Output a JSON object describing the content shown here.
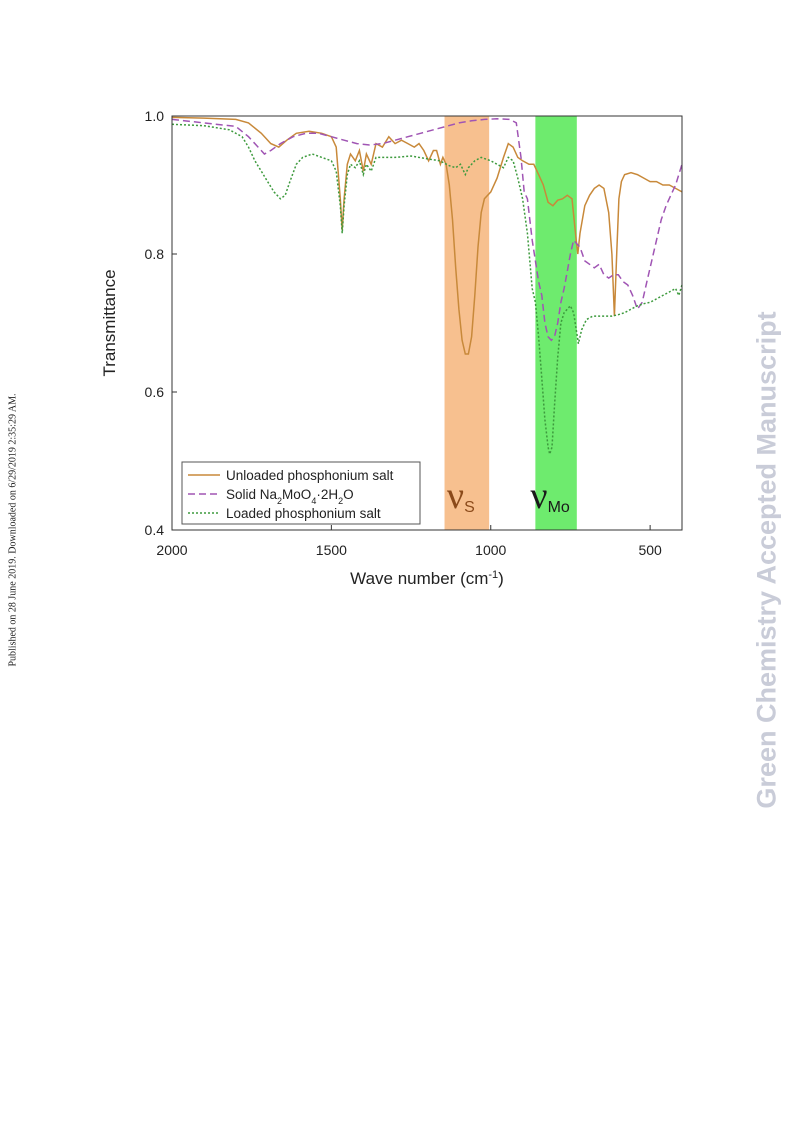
{
  "side_note": "Published on 28 June 2019. Downloaded on 6/29/2019 2:35:29 AM.",
  "watermark": "Green Chemistry Accepted Manuscript",
  "colors": {
    "unloaded": "#c8893a",
    "solid": "#a055b4",
    "loaded": "#3d9a3d",
    "band_s": "#f7c08f",
    "band_mo": "#6eeb6e"
  },
  "chart_data": {
    "type": "line",
    "title": "",
    "xlabel": "Wave number (cm",
    "xlabel_sup": "-1",
    "xlabel_tail": ")",
    "ylabel": "Transmittance",
    "xlim": [
      2000,
      400
    ],
    "ylim": [
      0.4,
      1.0
    ],
    "x_ticks": [
      2000,
      1500,
      1000,
      500
    ],
    "x_tick_labels": [
      "2000",
      "1500",
      "1000",
      "500"
    ],
    "y_ticks": [
      0.4,
      0.6,
      0.8,
      1.0
    ],
    "y_tick_labels": [
      "0.4",
      "0.6",
      "0.8",
      "1.0"
    ],
    "grid": false,
    "legend_position": "bottom-left",
    "bands": [
      {
        "label": "ν",
        "sub": "S",
        "from": 1145,
        "to": 1005,
        "color": "#f7c08f",
        "text_color": "#8b4a1a"
      },
      {
        "label": "ν",
        "sub": "Mo",
        "from": 860,
        "to": 730,
        "color": "#6eeb6e",
        "text_color": "#1a1a1a"
      }
    ],
    "series": [
      {
        "name": "Unloaded phosphonium salt",
        "style": "solid",
        "points": [
          [
            2000,
            0.998
          ],
          [
            1900,
            0.997
          ],
          [
            1800,
            0.995
          ],
          [
            1760,
            0.99
          ],
          [
            1720,
            0.975
          ],
          [
            1690,
            0.96
          ],
          [
            1665,
            0.955
          ],
          [
            1640,
            0.965
          ],
          [
            1610,
            0.975
          ],
          [
            1570,
            0.978
          ],
          [
            1530,
            0.975
          ],
          [
            1500,
            0.97
          ],
          [
            1485,
            0.955
          ],
          [
            1472,
            0.88
          ],
          [
            1466,
            0.835
          ],
          [
            1460,
            0.88
          ],
          [
            1450,
            0.93
          ],
          [
            1440,
            0.945
          ],
          [
            1425,
            0.935
          ],
          [
            1412,
            0.95
          ],
          [
            1400,
            0.92
          ],
          [
            1390,
            0.945
          ],
          [
            1375,
            0.93
          ],
          [
            1360,
            0.96
          ],
          [
            1340,
            0.955
          ],
          [
            1320,
            0.97
          ],
          [
            1300,
            0.96
          ],
          [
            1280,
            0.965
          ],
          [
            1260,
            0.96
          ],
          [
            1240,
            0.955
          ],
          [
            1225,
            0.96
          ],
          [
            1210,
            0.95
          ],
          [
            1195,
            0.935
          ],
          [
            1180,
            0.95
          ],
          [
            1170,
            0.95
          ],
          [
            1158,
            0.93
          ],
          [
            1150,
            0.94
          ],
          [
            1140,
            0.93
          ],
          [
            1130,
            0.9
          ],
          [
            1120,
            0.85
          ],
          [
            1110,
            0.78
          ],
          [
            1100,
            0.72
          ],
          [
            1090,
            0.675
          ],
          [
            1080,
            0.655
          ],
          [
            1070,
            0.655
          ],
          [
            1060,
            0.68
          ],
          [
            1050,
            0.74
          ],
          [
            1040,
            0.81
          ],
          [
            1030,
            0.86
          ],
          [
            1020,
            0.88
          ],
          [
            1000,
            0.89
          ],
          [
            980,
            0.91
          ],
          [
            960,
            0.94
          ],
          [
            945,
            0.96
          ],
          [
            930,
            0.955
          ],
          [
            915,
            0.94
          ],
          [
            900,
            0.935
          ],
          [
            880,
            0.93
          ],
          [
            865,
            0.93
          ],
          [
            850,
            0.915
          ],
          [
            835,
            0.9
          ],
          [
            820,
            0.875
          ],
          [
            805,
            0.87
          ],
          [
            790,
            0.878
          ],
          [
            775,
            0.88
          ],
          [
            760,
            0.885
          ],
          [
            745,
            0.88
          ],
          [
            732,
            0.82
          ],
          [
            727,
            0.8
          ],
          [
            720,
            0.83
          ],
          [
            705,
            0.87
          ],
          [
            690,
            0.885
          ],
          [
            675,
            0.895
          ],
          [
            660,
            0.9
          ],
          [
            645,
            0.895
          ],
          [
            630,
            0.86
          ],
          [
            620,
            0.8
          ],
          [
            612,
            0.71
          ],
          [
            605,
            0.8
          ],
          [
            598,
            0.88
          ],
          [
            590,
            0.905
          ],
          [
            580,
            0.915
          ],
          [
            560,
            0.918
          ],
          [
            540,
            0.915
          ],
          [
            520,
            0.91
          ],
          [
            500,
            0.905
          ],
          [
            480,
            0.905
          ],
          [
            460,
            0.9
          ],
          [
            440,
            0.9
          ],
          [
            420,
            0.895
          ],
          [
            400,
            0.89
          ]
        ]
      },
      {
        "name": "Solid Na2MoO4·2H2O",
        "name_parts": [
          "Solid Na",
          "2",
          "MoO",
          "4",
          "·2H",
          "2",
          "O"
        ],
        "style": "dashed",
        "points": [
          [
            2000,
            0.995
          ],
          [
            1900,
            0.99
          ],
          [
            1800,
            0.985
          ],
          [
            1760,
            0.97
          ],
          [
            1730,
            0.955
          ],
          [
            1710,
            0.945
          ],
          [
            1690,
            0.95
          ],
          [
            1660,
            0.96
          ],
          [
            1620,
            0.97
          ],
          [
            1580,
            0.975
          ],
          [
            1540,
            0.975
          ],
          [
            1500,
            0.97
          ],
          [
            1460,
            0.965
          ],
          [
            1420,
            0.96
          ],
          [
            1380,
            0.958
          ],
          [
            1340,
            0.96
          ],
          [
            1300,
            0.965
          ],
          [
            1260,
            0.97
          ],
          [
            1220,
            0.975
          ],
          [
            1180,
            0.98
          ],
          [
            1140,
            0.985
          ],
          [
            1100,
            0.99
          ],
          [
            1060,
            0.993
          ],
          [
            1020,
            0.995
          ],
          [
            980,
            0.996
          ],
          [
            940,
            0.995
          ],
          [
            920,
            0.99
          ],
          [
            905,
            0.94
          ],
          [
            895,
            0.89
          ],
          [
            885,
            0.88
          ],
          [
            870,
            0.82
          ],
          [
            860,
            0.79
          ],
          [
            850,
            0.76
          ],
          [
            840,
            0.74
          ],
          [
            830,
            0.7
          ],
          [
            820,
            0.68
          ],
          [
            810,
            0.675
          ],
          [
            800,
            0.68
          ],
          [
            790,
            0.7
          ],
          [
            780,
            0.73
          ],
          [
            770,
            0.75
          ],
          [
            760,
            0.775
          ],
          [
            750,
            0.8
          ],
          [
            740,
            0.82
          ],
          [
            730,
            0.815
          ],
          [
            720,
            0.81
          ],
          [
            705,
            0.79
          ],
          [
            690,
            0.785
          ],
          [
            675,
            0.78
          ],
          [
            660,
            0.785
          ],
          [
            645,
            0.77
          ],
          [
            630,
            0.765
          ],
          [
            615,
            0.77
          ],
          [
            600,
            0.77
          ],
          [
            585,
            0.76
          ],
          [
            570,
            0.755
          ],
          [
            555,
            0.74
          ],
          [
            540,
            0.72
          ],
          [
            525,
            0.73
          ],
          [
            510,
            0.76
          ],
          [
            495,
            0.79
          ],
          [
            480,
            0.82
          ],
          [
            465,
            0.85
          ],
          [
            450,
            0.87
          ],
          [
            435,
            0.885
          ],
          [
            420,
            0.9
          ],
          [
            400,
            0.93
          ]
        ]
      },
      {
        "name": "Loaded phosphonium salt",
        "style": "dotted",
        "points": [
          [
            2000,
            0.988
          ],
          [
            1900,
            0.986
          ],
          [
            1820,
            0.98
          ],
          [
            1780,
            0.97
          ],
          [
            1760,
            0.955
          ],
          [
            1740,
            0.935
          ],
          [
            1720,
            0.92
          ],
          [
            1700,
            0.905
          ],
          [
            1680,
            0.89
          ],
          [
            1660,
            0.88
          ],
          [
            1645,
            0.885
          ],
          [
            1630,
            0.905
          ],
          [
            1610,
            0.93
          ],
          [
            1590,
            0.94
          ],
          [
            1560,
            0.945
          ],
          [
            1530,
            0.94
          ],
          [
            1500,
            0.935
          ],
          [
            1485,
            0.92
          ],
          [
            1472,
            0.87
          ],
          [
            1466,
            0.83
          ],
          [
            1460,
            0.87
          ],
          [
            1450,
            0.915
          ],
          [
            1440,
            0.93
          ],
          [
            1425,
            0.925
          ],
          [
            1412,
            0.935
          ],
          [
            1400,
            0.915
          ],
          [
            1390,
            0.93
          ],
          [
            1375,
            0.92
          ],
          [
            1360,
            0.94
          ],
          [
            1300,
            0.94
          ],
          [
            1250,
            0.942
          ],
          [
            1200,
            0.938
          ],
          [
            1160,
            0.935
          ],
          [
            1130,
            0.928
          ],
          [
            1110,
            0.925
          ],
          [
            1095,
            0.93
          ],
          [
            1080,
            0.915
          ],
          [
            1070,
            0.925
          ],
          [
            1050,
            0.935
          ],
          [
            1030,
            0.94
          ],
          [
            1000,
            0.935
          ],
          [
            980,
            0.93
          ],
          [
            960,
            0.925
          ],
          [
            945,
            0.94
          ],
          [
            930,
            0.935
          ],
          [
            915,
            0.91
          ],
          [
            900,
            0.88
          ],
          [
            885,
            0.83
          ],
          [
            870,
            0.75
          ],
          [
            860,
            0.73
          ],
          [
            850,
            0.68
          ],
          [
            840,
            0.62
          ],
          [
            830,
            0.56
          ],
          [
            820,
            0.52
          ],
          [
            815,
            0.51
          ],
          [
            808,
            0.52
          ],
          [
            800,
            0.58
          ],
          [
            790,
            0.65
          ],
          [
            780,
            0.7
          ],
          [
            770,
            0.715
          ],
          [
            760,
            0.72
          ],
          [
            750,
            0.725
          ],
          [
            740,
            0.715
          ],
          [
            730,
            0.685
          ],
          [
            725,
            0.67
          ],
          [
            715,
            0.69
          ],
          [
            700,
            0.705
          ],
          [
            680,
            0.71
          ],
          [
            660,
            0.71
          ],
          [
            640,
            0.71
          ],
          [
            620,
            0.71
          ],
          [
            600,
            0.712
          ],
          [
            580,
            0.715
          ],
          [
            560,
            0.72
          ],
          [
            540,
            0.725
          ],
          [
            520,
            0.728
          ],
          [
            500,
            0.73
          ],
          [
            480,
            0.735
          ],
          [
            460,
            0.74
          ],
          [
            440,
            0.745
          ],
          [
            420,
            0.75
          ],
          [
            410,
            0.74
          ],
          [
            400,
            0.755
          ]
        ]
      }
    ]
  }
}
